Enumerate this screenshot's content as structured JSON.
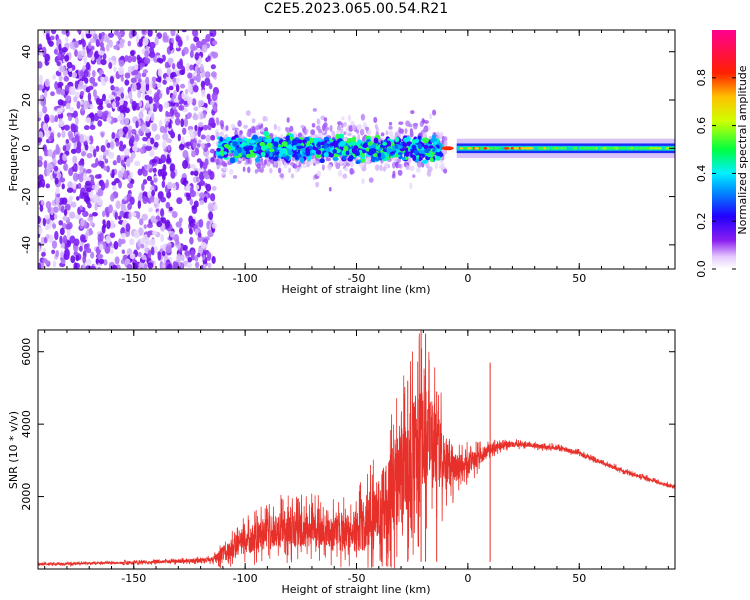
{
  "title": "C2E5.2023.065.00.54.R21",
  "colors": {
    "snr_line": "#e8302a",
    "scatter_base": "#7a1ef0",
    "frame": "#000000"
  },
  "chart_data": [
    {
      "type": "heatmap",
      "xlabel": "Height of straight line (km)",
      "ylabel": "Frequency (Hz)",
      "xlim": [
        -193,
        93
      ],
      "ylim": [
        -50,
        49
      ],
      "xticks": [
        -150,
        -100,
        -50,
        0,
        50
      ],
      "yticks": [
        -40,
        -20,
        0,
        20,
        40
      ],
      "colorbar": {
        "label": "Normalized spectral amplitude",
        "range": [
          0,
          1
        ],
        "ticks": [
          "0.0",
          "0.2",
          "0.4",
          "0.6",
          "0.8"
        ],
        "colormap": "rainbow (violet → blue → cyan → green → yellow → orange → red → magenta)"
      },
      "regions": [
        {
          "x": [
            -193,
            -113
          ],
          "description": "broadband noise, frequency spread across full range"
        },
        {
          "x": [
            -113,
            -10
          ],
          "description": "energy concentrated near 0 Hz, spread about ±10 Hz"
        },
        {
          "x": [
            -5,
            93
          ],
          "description": "narrow band at 0 Hz, peaks near 0–30 km"
        }
      ]
    },
    {
      "type": "line",
      "xlabel": "Height of straight line (km)",
      "ylabel": "SNR (10 * v/v)",
      "xlim": [
        -193,
        93
      ],
      "ylim": [
        0,
        6600
      ],
      "xticks": [
        -150,
        -100,
        -50,
        0,
        50
      ],
      "yticks": [
        2000,
        4000,
        6000
      ],
      "series": [
        {
          "x": [
            -193,
            -170,
            -150,
            -130,
            -115,
            -110,
            -100,
            -90,
            -80,
            -70,
            -60,
            -50,
            -45,
            -40,
            -35,
            -30,
            -25,
            -20,
            -15,
            -10,
            -5,
            0,
            5,
            10,
            15,
            20,
            25,
            30,
            40,
            50,
            60,
            70,
            80,
            93
          ],
          "values": [
            130,
            160,
            180,
            210,
            260,
            420,
            750,
            1000,
            1150,
            1100,
            1000,
            1050,
            1250,
            1550,
            2050,
            2600,
            3150,
            3800,
            3500,
            2900,
            2800,
            2900,
            3100,
            3300,
            3400,
            3450,
            3450,
            3400,
            3350,
            3200,
            2950,
            2700,
            2500,
            2250
          ],
          "amplitude": [
            60,
            60,
            70,
            90,
            120,
            450,
            700,
            900,
            1000,
            1000,
            950,
            1150,
            1500,
            1900,
            2300,
            2700,
            2900,
            3000,
            2200,
            1600,
            800,
            600,
            450,
            300,
            200,
            150,
            150,
            130,
            120,
            110,
            110,
            100,
            100,
            90
          ],
          "spikes": [
            {
              "x": -21,
              "value": 6600
            },
            {
              "x": -19,
              "value": 6500
            },
            {
              "x": -27,
              "value": 5200
            },
            {
              "x": 10,
              "value": 5700
            },
            {
              "x": -14,
              "value": 4900
            }
          ]
        }
      ]
    }
  ]
}
